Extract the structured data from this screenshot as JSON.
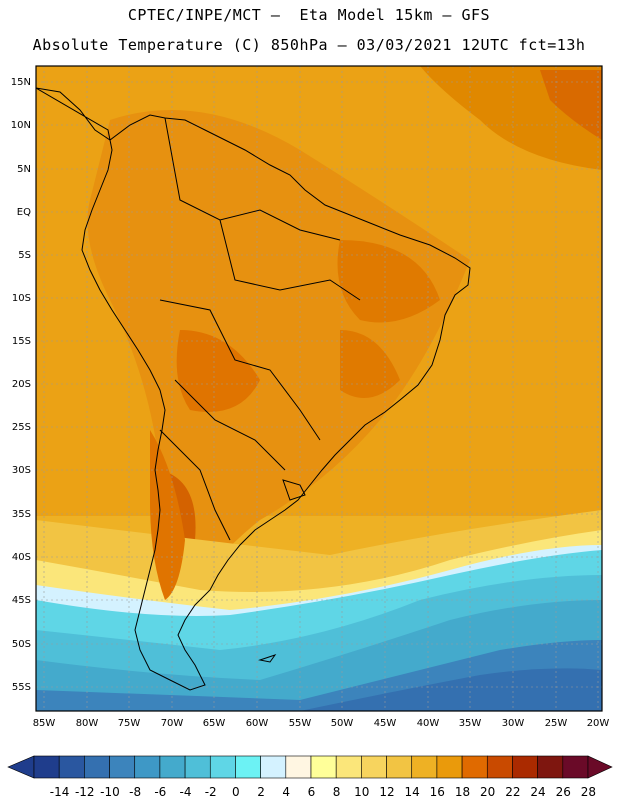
{
  "header": {
    "line1": "CPTEC/INPE/MCT –  Eta Model 15km – GFS",
    "line2": "Absolute Temperature (C) 850hPa – 03/03/2021 12UTC fct=13h"
  },
  "map": {
    "lat_labels": [
      "15N",
      "10N",
      "5N",
      "EQ",
      "5S",
      "10S",
      "15S",
      "20S",
      "25S",
      "30S",
      "35S",
      "40S",
      "45S",
      "50S",
      "55S"
    ],
    "lon_labels": [
      "85W",
      "80W",
      "75W",
      "70W",
      "65W",
      "60W",
      "55W",
      "50W",
      "45W",
      "40W",
      "35W",
      "30W",
      "25W",
      "20W"
    ]
  },
  "legend": {
    "labels": [
      "-14",
      "-12",
      "-10",
      "-8",
      "-6",
      "-4",
      "-2",
      "0",
      "2",
      "4",
      "6",
      "8",
      "10",
      "12",
      "14",
      "16",
      "18",
      "20",
      "22",
      "24",
      "26",
      "28"
    ],
    "colors": [
      "#1f3d8c",
      "#2a57a0",
      "#3470b0",
      "#3c84bc",
      "#3e98c6",
      "#44aacc",
      "#4fbfd8",
      "#5fd6e6",
      "#6cf2f4",
      "#d4f2ff",
      "#fff6e2",
      "#ffff99",
      "#fbe67a",
      "#f7d45e",
      "#f2c443",
      "#eeb124",
      "#ea9a0b",
      "#e06a00",
      "#c94a00",
      "#aa2a00",
      "#7e160f",
      "#6a0a28"
    ]
  }
}
